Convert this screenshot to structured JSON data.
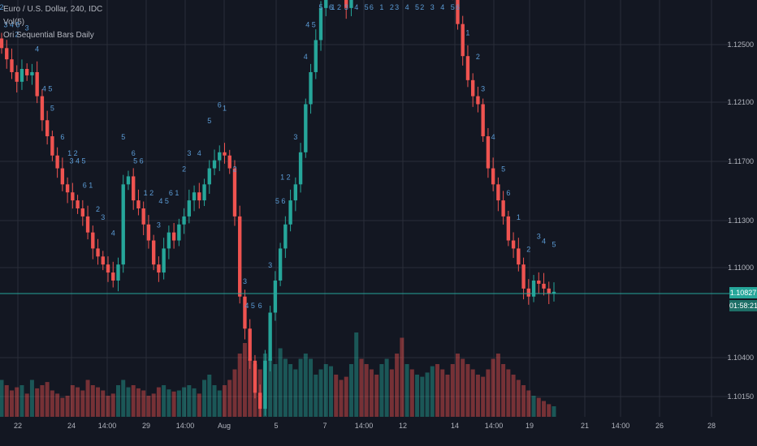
{
  "legend": {
    "symbol": "Euro / U.S. Dollar, 240, IDC",
    "volume": "Vol(5)",
    "indicator": "Ori Sequential Bars Daily"
  },
  "price_axis": {
    "ticks": [
      "1.12500",
      "1.12100",
      "1.11700",
      "1.11300",
      "1.11000",
      "1.10400",
      "1.10150"
    ],
    "tick_values": [
      1.125,
      1.121,
      1.117,
      1.113,
      1.11,
      1.104,
      1.1015
    ],
    "last_price": "1.10827",
    "countdown": "01:58:21"
  },
  "time_axis": {
    "labels": [
      "22",
      "24",
      "14:00",
      "29",
      "14:00",
      "Aug",
      "5",
      "7",
      "14:00",
      "12",
      "14",
      "14:00",
      "19",
      "21",
      "14:00",
      "26",
      "28"
    ]
  },
  "colors": {
    "background": "#131722",
    "up": "#26a69a",
    "down": "#ef5350",
    "grid": "#2a2e39",
    "sequence": "#5b9bd5",
    "text": "#b2b5be"
  },
  "chart_data": {
    "type": "candlestick",
    "title": "Euro / U.S. Dollar, 240, IDC",
    "y_axis_labels": [
      "1.12500",
      "1.12100",
      "1.11700",
      "1.11300",
      "1.11000",
      "1.10400",
      "1.10150"
    ],
    "x_axis_labels": [
      "22",
      "24",
      "14:00",
      "29",
      "14:00",
      "Aug",
      "5",
      "7",
      "14:00",
      "12",
      "14",
      "14:00",
      "19",
      "21",
      "14:00",
      "26",
      "28"
    ],
    "last_value": 1.10827,
    "ohlc_close_path": [
      1.1235,
      1.1228,
      1.122,
      1.1214,
      1.1222,
      1.1218,
      1.122,
      1.1205,
      1.119,
      1.118,
      1.1168,
      1.116,
      1.115,
      1.1145,
      1.114,
      1.1135,
      1.113,
      1.112,
      1.111,
      1.1105,
      1.11,
      1.1095,
      1.109,
      1.11,
      1.115,
      1.1155,
      1.114,
      1.1135,
      1.1125,
      1.1115,
      1.11,
      1.1095,
      1.111,
      1.112,
      1.1115,
      1.1125,
      1.113,
      1.114,
      1.1145,
      1.114,
      1.115,
      1.116,
      1.1165,
      1.117,
      1.1168,
      1.116,
      1.113,
      1.108,
      1.106,
      1.104,
      1.102,
      1.101,
      1.104,
      1.107,
      1.109,
      1.111,
      1.1125,
      1.114,
      1.115,
      1.117,
      1.12,
      1.122,
      1.124,
      1.126,
      1.129,
      1.131,
      1.13,
      1.127,
      1.126,
      1.13,
      1.132,
      1.1315,
      1.131,
      1.1295,
      1.128,
      1.13,
      1.131,
      1.1305,
      1.129,
      1.128,
      1.128,
      1.1275,
      1.1285,
      1.1295,
      1.13,
      1.131,
      1.1305,
      1.13,
      1.129,
      1.127,
      1.125,
      1.123,
      1.1215,
      1.1205,
      1.12,
      1.118,
      1.116,
      1.115,
      1.114,
      1.113,
      1.1115,
      1.111,
      1.11,
      1.1085,
      1.108,
      1.109,
      1.1088,
      1.1085,
      1.1082,
      1.1083
    ],
    "volumes": [
      0.35,
      0.3,
      0.25,
      0.28,
      0.3,
      0.22,
      0.35,
      0.27,
      0.3,
      0.33,
      0.25,
      0.22,
      0.18,
      0.2,
      0.3,
      0.28,
      0.25,
      0.35,
      0.3,
      0.28,
      0.25,
      0.2,
      0.22,
      0.3,
      0.35,
      0.28,
      0.3,
      0.27,
      0.25,
      0.2,
      0.22,
      0.28,
      0.3,
      0.26,
      0.24,
      0.25,
      0.28,
      0.3,
      0.27,
      0.22,
      0.35,
      0.4,
      0.3,
      0.25,
      0.3,
      0.35,
      0.45,
      0.6,
      0.7,
      0.55,
      0.5,
      0.45,
      0.6,
      0.55,
      0.5,
      0.65,
      0.55,
      0.5,
      0.45,
      0.55,
      0.6,
      0.55,
      0.4,
      0.45,
      0.5,
      0.48,
      0.4,
      0.35,
      0.38,
      0.5,
      0.8,
      0.55,
      0.5,
      0.45,
      0.4,
      0.5,
      0.55,
      0.45,
      0.6,
      0.75,
      0.5,
      0.45,
      0.4,
      0.38,
      0.42,
      0.48,
      0.5,
      0.45,
      0.4,
      0.5,
      0.6,
      0.55,
      0.5,
      0.45,
      0.4,
      0.38,
      0.45,
      0.55,
      0.6,
      0.5,
      0.45,
      0.4,
      0.35,
      0.3,
      0.25,
      0.2,
      0.18,
      0.15,
      0.12,
      0.1
    ],
    "sequence_numbers": [
      "2",
      "3 4 5",
      "2",
      "3",
      "4",
      "4 5",
      "5",
      "6",
      "1 2",
      "3 4 5",
      "6 1",
      "2",
      "3",
      "4",
      "5",
      "6",
      "5 6",
      "1 2",
      "3",
      "4 5",
      "6 1",
      "2",
      "3",
      "4",
      "5",
      "6",
      "1",
      "2",
      "3",
      "4 5",
      "6",
      "3",
      "5 6",
      "1 2",
      "3",
      "4",
      "4 5",
      "5",
      "6",
      "1 2",
      "3",
      "4",
      "5",
      "6",
      "1",
      "2",
      "3",
      "4",
      "5",
      "2",
      "3",
      "4",
      "5",
      "6",
      "1",
      "2",
      "3",
      "4",
      "5",
      "6",
      "1",
      "2",
      "3",
      "4",
      "5"
    ]
  }
}
